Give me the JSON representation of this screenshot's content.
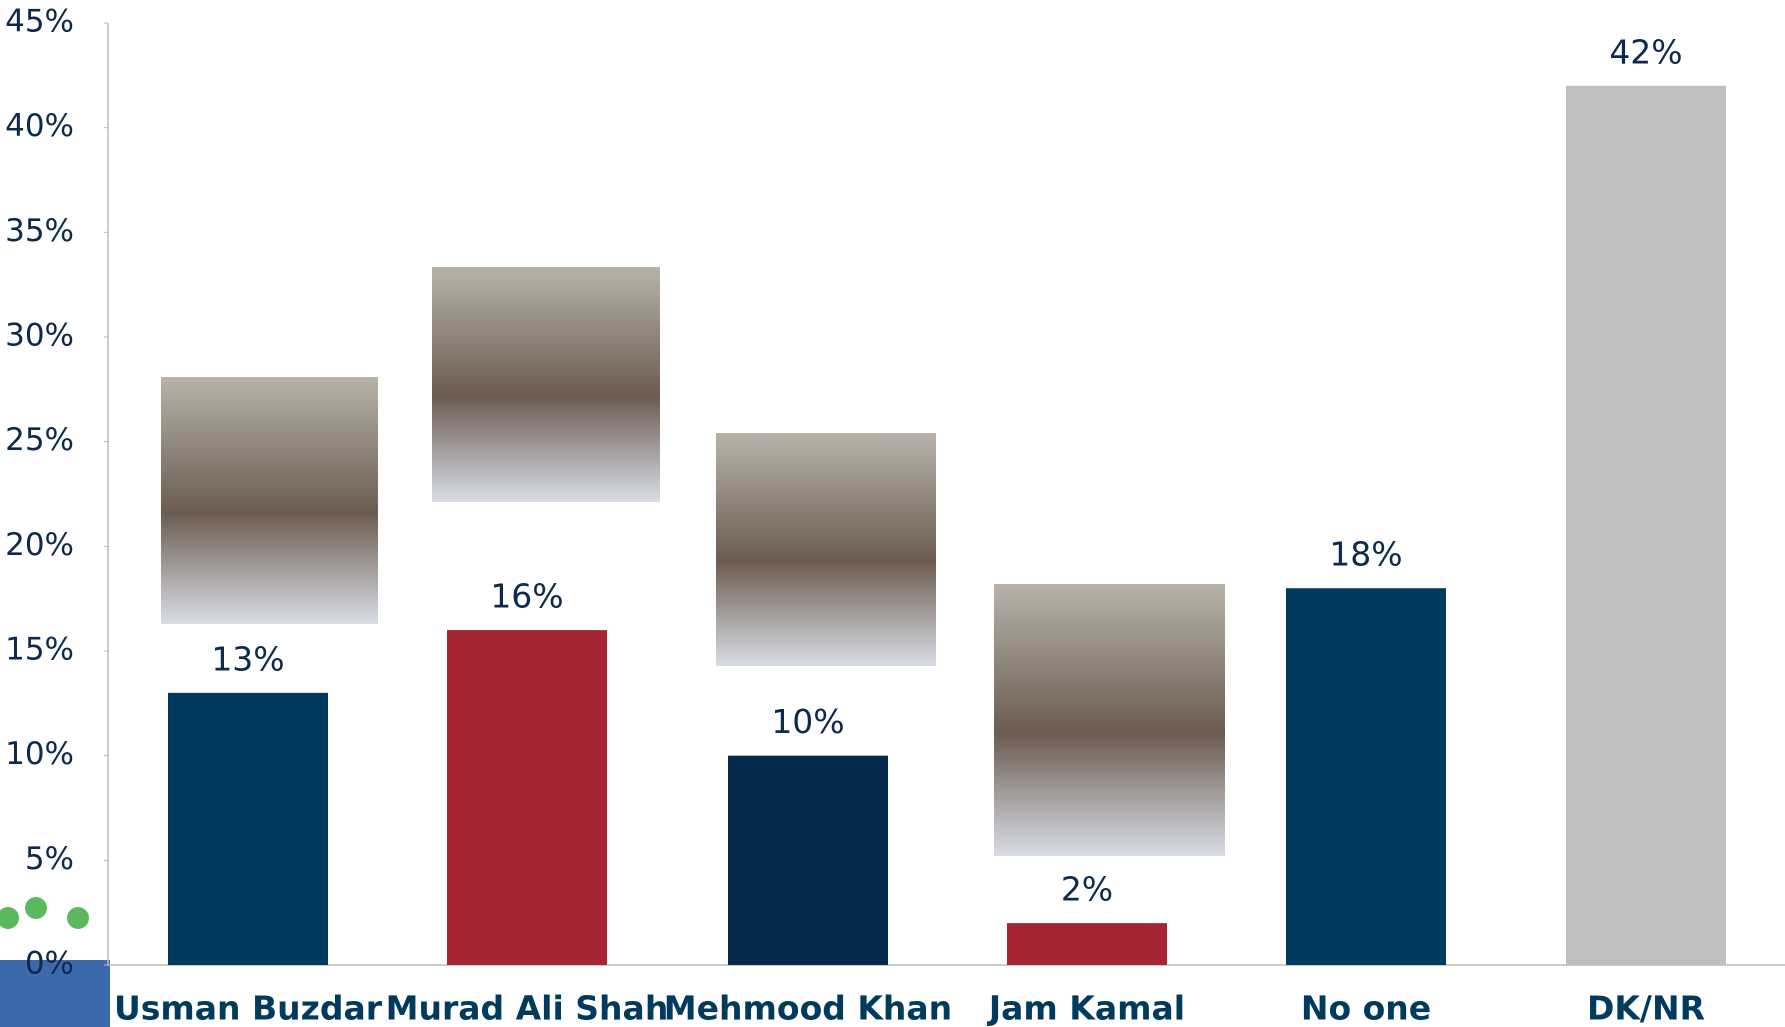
{
  "chart_data": {
    "type": "bar",
    "categories": [
      "Usman Buzdar",
      "Murad Ali Shah",
      "Mehmood Khan",
      "Jam Kamal",
      "No one",
      "DK/NR"
    ],
    "values": [
      13,
      16,
      10,
      2,
      18,
      42
    ],
    "value_labels": [
      "13%",
      "16%",
      "10%",
      "2%",
      "18%",
      "42%"
    ],
    "colors": [
      "#003a5c",
      "#a52535",
      "#04294a",
      "#a52535",
      "#003a5c",
      "#bfbfbf"
    ],
    "ylim": [
      0,
      45
    ],
    "yticks": [
      {
        "value": 0,
        "label": "0%"
      },
      {
        "value": 5,
        "label": "5%"
      },
      {
        "value": 10,
        "label": "10%"
      },
      {
        "value": 15,
        "label": "15%"
      },
      {
        "value": 20,
        "label": "20%"
      },
      {
        "value": 25,
        "label": "25%"
      },
      {
        "value": 30,
        "label": "30%"
      },
      {
        "value": 35,
        "label": "35%"
      },
      {
        "value": 40,
        "label": "40%"
      },
      {
        "value": 45,
        "label": "45%"
      }
    ],
    "grid": false
  }
}
